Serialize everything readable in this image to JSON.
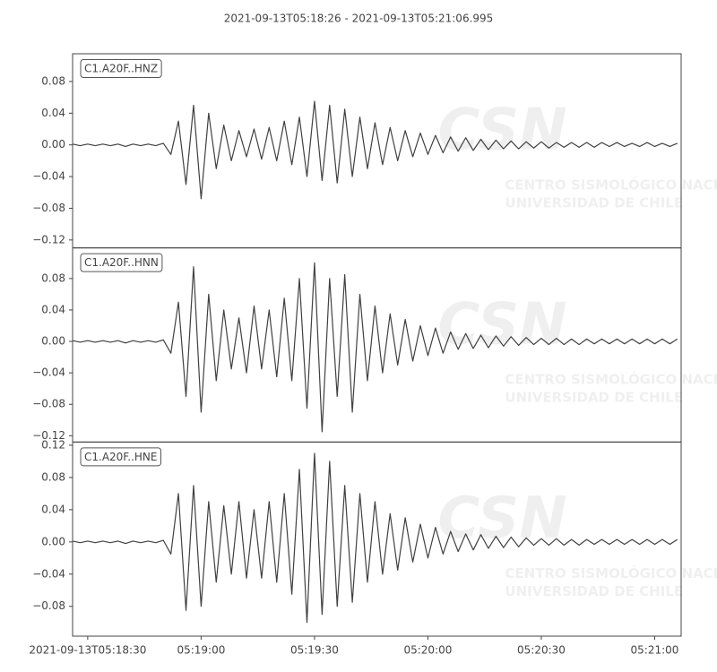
{
  "title": "2021-09-13T05:18:26  -  2021-09-13T05:21:06.995",
  "watermark": {
    "logo": "CSN",
    "text": [
      "CENTRO SISMOLÓGICO NACIONAL",
      "UNIVERSIDAD DE CHILE"
    ]
  },
  "chart_data": [
    {
      "type": "line",
      "x": [
        19106,
        19108,
        19110,
        19112,
        19114,
        19116,
        19118,
        19120,
        19122,
        19124,
        19126,
        19128,
        19130,
        19132,
        19134,
        19136,
        19138,
        19140,
        19142,
        19144,
        19146,
        19148,
        19150,
        19152,
        19154,
        19156,
        19158,
        19160,
        19162,
        19164,
        19166,
        19168,
        19170,
        19172,
        19174,
        19176,
        19178,
        19180,
        19182,
        19184,
        19186,
        19188,
        19190,
        19192,
        19194,
        19196,
        19198,
        19200,
        19202,
        19204,
        19206,
        19208,
        19210,
        19212,
        19214,
        19216,
        19218,
        19220,
        19222,
        19224,
        19226,
        19228,
        19230,
        19232,
        19234,
        19236,
        19238,
        19240,
        19242,
        19244,
        19246,
        19248,
        19250,
        19252,
        19254,
        19256,
        19258,
        19260,
        19262,
        19264,
        19266
      ],
      "series": [
        {
          "name": "C1.A20F..HNZ",
          "color": "#404040",
          "values": [
            0.001,
            -0.001,
            0.001,
            -0.001,
            0.001,
            -0.001,
            0.001,
            -0.002,
            0.001,
            -0.001,
            0.001,
            -0.001,
            0.002,
            -0.012,
            0.03,
            -0.05,
            0.05,
            -0.068,
            0.04,
            -0.03,
            0.025,
            -0.02,
            0.018,
            -0.015,
            0.02,
            -0.018,
            0.022,
            -0.02,
            0.03,
            -0.025,
            0.035,
            -0.04,
            0.055,
            -0.045,
            0.05,
            -0.048,
            0.045,
            -0.04,
            0.035,
            -0.03,
            0.028,
            -0.025,
            0.022,
            -0.02,
            0.018,
            -0.015,
            0.015,
            -0.012,
            0.012,
            -0.01,
            0.01,
            -0.008,
            0.009,
            -0.007,
            0.007,
            -0.006,
            0.006,
            -0.005,
            0.005,
            -0.005,
            0.004,
            -0.004,
            0.004,
            -0.004,
            0.003,
            -0.003,
            0.003,
            -0.003,
            0.003,
            -0.003,
            0.003,
            -0.002,
            0.003,
            -0.002,
            0.002,
            -0.002,
            0.003,
            -0.002,
            0.002,
            -0.002,
            0.002
          ]
        }
      ],
      "xlim": [
        19106,
        19266.995
      ],
      "ylim": [
        -0.13,
        0.115
      ],
      "yticks": [
        {
          "value": -0.12,
          "label": "−0.12"
        },
        {
          "value": -0.08,
          "label": "−0.08"
        },
        {
          "value": -0.04,
          "label": "−0.04"
        },
        {
          "value": 0,
          "label": "0.00"
        },
        0.04,
        0.08
      ]
    },
    {
      "type": "line",
      "x": [
        19106,
        19108,
        19110,
        19112,
        19114,
        19116,
        19118,
        19120,
        19122,
        19124,
        19126,
        19128,
        19130,
        19132,
        19134,
        19136,
        19138,
        19140,
        19142,
        19144,
        19146,
        19148,
        19150,
        19152,
        19154,
        19156,
        19158,
        19160,
        19162,
        19164,
        19166,
        19168,
        19170,
        19172,
        19174,
        19176,
        19178,
        19180,
        19182,
        19184,
        19186,
        19188,
        19190,
        19192,
        19194,
        19196,
        19198,
        19200,
        19202,
        19204,
        19206,
        19208,
        19210,
        19212,
        19214,
        19216,
        19218,
        19220,
        19222,
        19224,
        19226,
        19228,
        19230,
        19232,
        19234,
        19236,
        19238,
        19240,
        19242,
        19244,
        19246,
        19248,
        19250,
        19252,
        19254,
        19256,
        19258,
        19260,
        19262,
        19264,
        19266
      ],
      "series": [
        {
          "name": "C1.A20F..HNN",
          "color": "#404040",
          "values": [
            0.001,
            -0.001,
            0.001,
            -0.001,
            0.001,
            -0.001,
            0.001,
            -0.002,
            0.001,
            -0.001,
            0.001,
            -0.001,
            0.002,
            -0.015,
            0.05,
            -0.07,
            0.095,
            -0.09,
            0.06,
            -0.05,
            0.04,
            -0.035,
            0.03,
            -0.04,
            0.045,
            -0.035,
            0.04,
            -0.045,
            0.055,
            -0.05,
            0.08,
            -0.085,
            0.1,
            -0.115,
            0.08,
            -0.07,
            0.085,
            -0.09,
            0.06,
            -0.05,
            0.045,
            -0.04,
            0.035,
            -0.03,
            0.028,
            -0.025,
            0.02,
            -0.018,
            0.017,
            -0.015,
            0.012,
            -0.01,
            0.01,
            -0.009,
            0.008,
            -0.008,
            0.007,
            -0.006,
            0.006,
            -0.005,
            0.005,
            -0.004,
            0.004,
            -0.004,
            0.004,
            -0.004,
            0.003,
            -0.004,
            0.003,
            -0.003,
            0.003,
            -0.003,
            0.003,
            -0.003,
            0.003,
            -0.003,
            0.003,
            -0.003,
            0.003,
            -0.003,
            0.003
          ]
        }
      ],
      "xlim": [
        19106,
        19266.995
      ],
      "ylim": [
        -0.128,
        0.119
      ],
      "yticks": [
        {
          "value": -0.12,
          "label": "−0.12"
        },
        {
          "value": -0.08,
          "label": "−0.08"
        },
        {
          "value": -0.04,
          "label": "−0.04"
        },
        {
          "value": 0,
          "label": "0.00"
        },
        0.04,
        0.08
      ]
    },
    {
      "type": "line",
      "x": [
        19106,
        19108,
        19110,
        19112,
        19114,
        19116,
        19118,
        19120,
        19122,
        19124,
        19126,
        19128,
        19130,
        19132,
        19134,
        19136,
        19138,
        19140,
        19142,
        19144,
        19146,
        19148,
        19150,
        19152,
        19154,
        19156,
        19158,
        19160,
        19162,
        19164,
        19166,
        19168,
        19170,
        19172,
        19174,
        19176,
        19178,
        19180,
        19182,
        19184,
        19186,
        19188,
        19190,
        19192,
        19194,
        19196,
        19198,
        19200,
        19202,
        19204,
        19206,
        19208,
        19210,
        19212,
        19214,
        19216,
        19218,
        19220,
        19222,
        19224,
        19226,
        19228,
        19230,
        19232,
        19234,
        19236,
        19238,
        19240,
        19242,
        19244,
        19246,
        19248,
        19250,
        19252,
        19254,
        19256,
        19258,
        19260,
        19262,
        19264,
        19266
      ],
      "series": [
        {
          "name": "C1.A20F..HNE",
          "color": "#404040",
          "values": [
            0.001,
            -0.001,
            0.001,
            -0.001,
            0.001,
            -0.001,
            0.001,
            -0.002,
            0.001,
            -0.001,
            0.001,
            -0.001,
            0.002,
            -0.015,
            0.06,
            -0.085,
            0.07,
            -0.08,
            0.05,
            -0.05,
            0.045,
            -0.04,
            0.05,
            -0.045,
            0.04,
            -0.045,
            0.05,
            -0.05,
            0.06,
            -0.065,
            0.09,
            -0.1,
            0.11,
            -0.09,
            0.1,
            -0.08,
            0.07,
            -0.075,
            0.06,
            -0.05,
            0.05,
            -0.04,
            0.035,
            -0.035,
            0.03,
            -0.025,
            0.022,
            -0.02,
            0.018,
            -0.015,
            0.013,
            -0.012,
            0.01,
            -0.01,
            0.009,
            -0.008,
            0.007,
            -0.007,
            0.006,
            -0.006,
            0.005,
            -0.004,
            0.004,
            -0.004,
            0.004,
            -0.004,
            0.003,
            -0.004,
            0.003,
            -0.003,
            0.003,
            -0.003,
            0.003,
            -0.003,
            0.003,
            -0.003,
            0.003,
            -0.003,
            0.003,
            -0.003,
            0.003
          ]
        }
      ],
      "xlim": [
        19106,
        19266.995
      ],
      "ylim": [
        -0.117,
        0.124
      ],
      "yticks": [
        {
          "value": -0.08,
          "label": "−0.08"
        },
        {
          "value": -0.04,
          "label": "−0.04"
        },
        {
          "value": 0,
          "label": "0.00"
        },
        0.04,
        0.08,
        0.12
      ],
      "xticks": [
        {
          "value": 19110,
          "label": "2021-09-13T05:18:30"
        },
        {
          "value": 19140,
          "label": "05:19:00"
        },
        {
          "value": 19170,
          "label": "05:19:30"
        },
        {
          "value": 19200,
          "label": "05:20:00"
        },
        {
          "value": 19230,
          "label": "05:20:30"
        },
        {
          "value": 19260,
          "label": "05:21:00"
        }
      ]
    }
  ]
}
